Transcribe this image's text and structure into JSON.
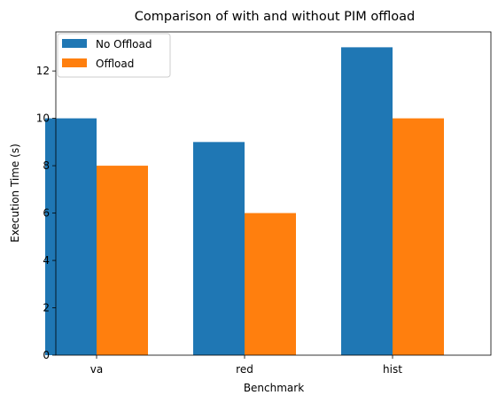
{
  "chart_data": {
    "type": "bar",
    "title": "Comparison of with and without PIM offload",
    "xlabel": "Benchmark",
    "ylabel": "Execution Time (s)",
    "categories": [
      "va",
      "red",
      "hist"
    ],
    "series": [
      {
        "name": "No Offload",
        "color": "#1f77b4",
        "values": [
          10,
          9,
          13
        ]
      },
      {
        "name": "Offload",
        "color": "#ff7f0e",
        "values": [
          8,
          6,
          10
        ]
      }
    ],
    "ylim": [
      0,
      13.65
    ],
    "yticks": [
      0,
      2,
      4,
      6,
      8,
      10,
      12
    ],
    "grid": false,
    "legend_position": "top-left"
  }
}
